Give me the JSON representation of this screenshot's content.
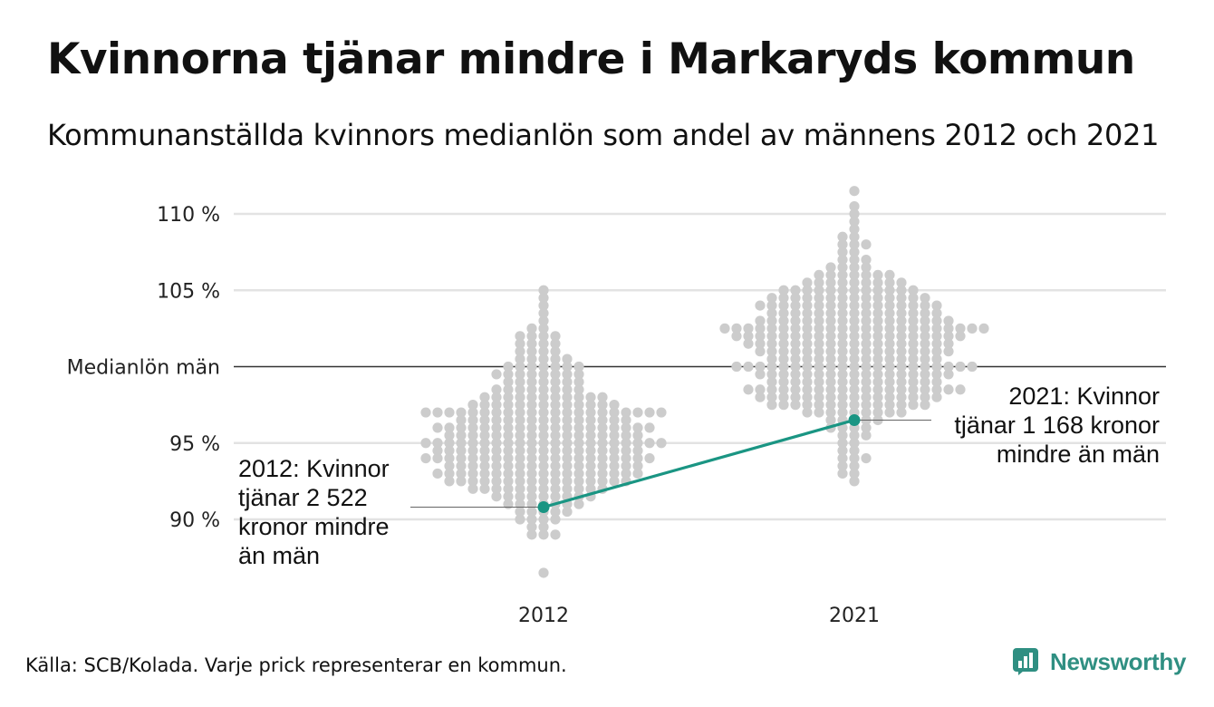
{
  "chart_data": {
    "type": "scatter",
    "title": "Kvinnorna tjänar mindre i Markaryds kommun",
    "subtitle": "Kommunanställda kvinnors medianlön som andel av männens 2012 och 2021",
    "categories": [
      "2012",
      "2021"
    ],
    "ylim": [
      86.5,
      112
    ],
    "y_ticks": [
      {
        "value": 90,
        "label": "90 %"
      },
      {
        "value": 95,
        "label": "95 %"
      },
      {
        "value": 100,
        "label": "Medianlön män"
      },
      {
        "value": 105,
        "label": "105 %"
      },
      {
        "value": 110,
        "label": "110 %"
      }
    ],
    "reference_line": {
      "value": 100,
      "label": "Medianlön män"
    },
    "grid": true,
    "dot_color": "#cccccc",
    "distributions": [
      {
        "category": "2012",
        "bins": [
          {
            "value": 86.5,
            "count": 1
          },
          {
            "value": 89.0,
            "count": 3
          },
          {
            "value": 89.5,
            "count": 2
          },
          {
            "value": 90.0,
            "count": 4
          },
          {
            "value": 90.5,
            "count": 5
          },
          {
            "value": 91.0,
            "count": 7
          },
          {
            "value": 91.5,
            "count": 9
          },
          {
            "value": 92.0,
            "count": 12
          },
          {
            "value": 92.5,
            "count": 16
          },
          {
            "value": 93.0,
            "count": 18
          },
          {
            "value": 93.5,
            "count": 17
          },
          {
            "value": 94.0,
            "count": 20
          },
          {
            "value": 94.5,
            "count": 18
          },
          {
            "value": 95.0,
            "count": 21
          },
          {
            "value": 95.5,
            "count": 17
          },
          {
            "value": 96.0,
            "count": 19
          },
          {
            "value": 96.5,
            "count": 15
          },
          {
            "value": 97.0,
            "count": 21
          },
          {
            "value": 97.5,
            "count": 13
          },
          {
            "value": 98.0,
            "count": 11
          },
          {
            "value": 98.5,
            "count": 8
          },
          {
            "value": 99.0,
            "count": 7
          },
          {
            "value": 99.5,
            "count": 8
          },
          {
            "value": 100.0,
            "count": 7
          },
          {
            "value": 100.5,
            "count": 5
          },
          {
            "value": 101.0,
            "count": 4
          },
          {
            "value": 101.5,
            "count": 4
          },
          {
            "value": 102.0,
            "count": 4
          },
          {
            "value": 102.5,
            "count": 2
          },
          {
            "value": 103.0,
            "count": 1
          },
          {
            "value": 103.5,
            "count": 1
          },
          {
            "value": 104.0,
            "count": 1
          },
          {
            "value": 104.5,
            "count": 1
          },
          {
            "value": 105.0,
            "count": 1
          }
        ]
      },
      {
        "category": "2021",
        "bins": [
          {
            "value": 92.5,
            "count": 1
          },
          {
            "value": 93.0,
            "count": 2
          },
          {
            "value": 93.5,
            "count": 2
          },
          {
            "value": 94.0,
            "count": 3
          },
          {
            "value": 94.5,
            "count": 2
          },
          {
            "value": 95.0,
            "count": 2
          },
          {
            "value": 95.5,
            "count": 3
          },
          {
            "value": 96.0,
            "count": 4
          },
          {
            "value": 96.5,
            "count": 5
          },
          {
            "value": 97.0,
            "count": 9
          },
          {
            "value": 97.5,
            "count": 14
          },
          {
            "value": 98.0,
            "count": 16
          },
          {
            "value": 98.5,
            "count": 19
          },
          {
            "value": 99.0,
            "count": 15
          },
          {
            "value": 99.5,
            "count": 17
          },
          {
            "value": 100.0,
            "count": 21
          },
          {
            "value": 100.5,
            "count": 15
          },
          {
            "value": 101.0,
            "count": 17
          },
          {
            "value": 101.5,
            "count": 18
          },
          {
            "value": 102.0,
            "count": 20
          },
          {
            "value": 102.5,
            "count": 23
          },
          {
            "value": 103.0,
            "count": 17
          },
          {
            "value": 103.5,
            "count": 15
          },
          {
            "value": 104.0,
            "count": 16
          },
          {
            "value": 104.5,
            "count": 14
          },
          {
            "value": 105.0,
            "count": 12
          },
          {
            "value": 105.5,
            "count": 9
          },
          {
            "value": 106.0,
            "count": 7
          },
          {
            "value": 106.5,
            "count": 4
          },
          {
            "value": 107.0,
            "count": 3
          },
          {
            "value": 107.5,
            "count": 2
          },
          {
            "value": 108.0,
            "count": 3
          },
          {
            "value": 108.5,
            "count": 2
          },
          {
            "value": 109.0,
            "count": 1
          },
          {
            "value": 109.5,
            "count": 1
          },
          {
            "value": 110.0,
            "count": 1
          },
          {
            "value": 110.5,
            "count": 1
          },
          {
            "value": 111.5,
            "count": 1
          }
        ]
      }
    ],
    "highlight": {
      "name": "Markaryd",
      "color": "#1a9583",
      "points": [
        {
          "category": "2012",
          "value": 90.8
        },
        {
          "category": "2021",
          "value": 96.5
        }
      ]
    },
    "annotations": [
      {
        "category": "2012",
        "value": 90.8,
        "side": "left",
        "lines": [
          "2012: Kvinnor",
          "tjänar 2 522",
          "kronor mindre",
          "än män"
        ]
      },
      {
        "category": "2021",
        "value": 96.5,
        "side": "right",
        "lines": [
          "2021: Kvinnor",
          "tjänar 1 168 kronor",
          "mindre än män"
        ]
      }
    ]
  },
  "footer": {
    "source": "Källa: SCB/Kolada. Varje prick representerar en kommun.",
    "brand": "Newsworthy",
    "brand_color": "#2f8f82"
  }
}
